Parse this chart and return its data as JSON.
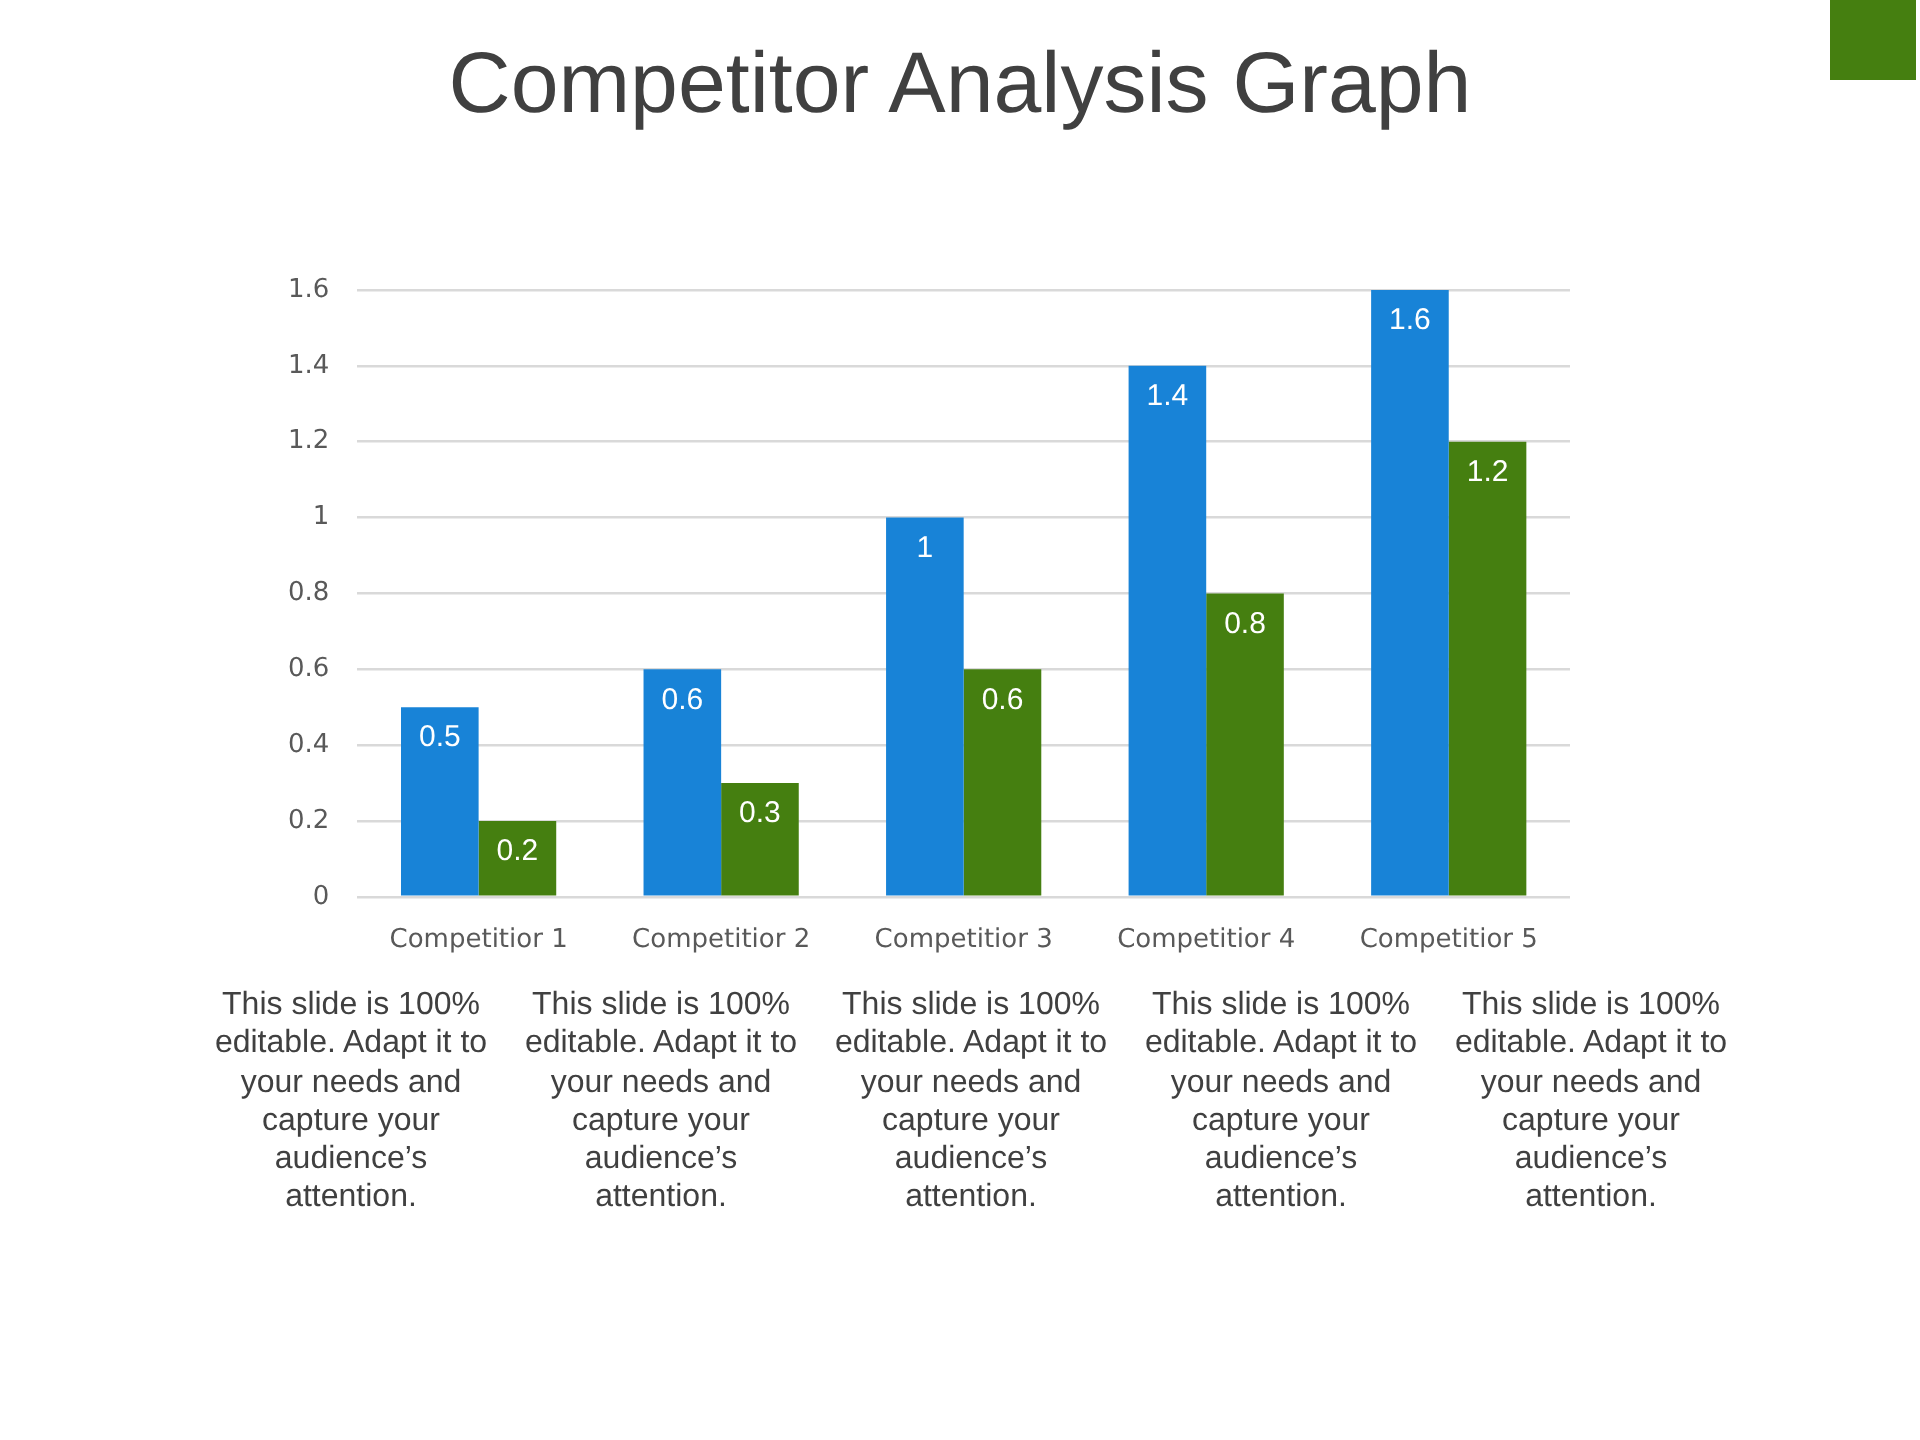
{
  "chart_data": {
    "type": "bar",
    "title": "Competitor Analysis Graph",
    "categories": [
      "Competitior 1",
      "Competitior 2",
      "Competitior 3",
      "Competitior 4",
      "Competitior 5"
    ],
    "series": [
      {
        "color": "#1883d7",
        "values": [
          0.5,
          0.6,
          1,
          1.4,
          1.6
        ]
      },
      {
        "color": "#457f10",
        "values": [
          0.2,
          0.3,
          0.6,
          0.8,
          1.2
        ]
      }
    ],
    "ylim": [
      0,
      1.6
    ],
    "yticks": [
      0,
      0.2,
      0.4,
      0.6,
      0.8,
      1,
      1.2,
      1.4,
      1.6
    ],
    "grid": "y",
    "data_labels": true,
    "annotations": [
      "This slide is 100% editable. Adapt it to your needs and capture your audience’s attention.",
      "This slide is 100% editable. Adapt it to your needs and capture your audience’s attention.",
      "This slide is 100% editable. Adapt it to your needs and capture your audience’s attention.",
      "This slide is 100% editable. Adapt it to your needs and capture your audience’s attention.",
      "This slide is 100% editable. Adapt it to your needs and capture your audience’s attention."
    ]
  }
}
